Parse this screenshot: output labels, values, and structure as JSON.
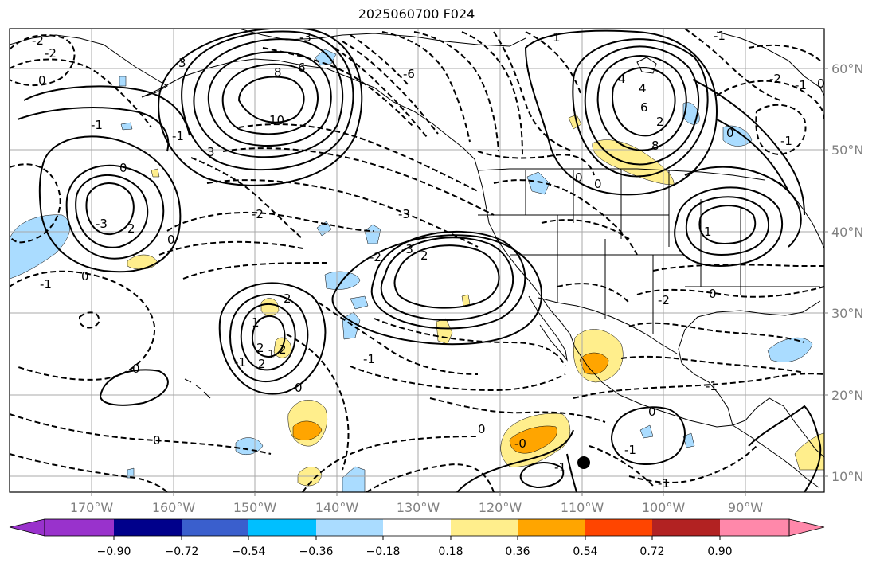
{
  "title": "2025060700 F024",
  "map": {
    "lon_labels": [
      "170°W",
      "160°W",
      "150°W",
      "140°W",
      "130°W",
      "120°W",
      "110°W",
      "100°W",
      "90°W"
    ],
    "lat_labels": [
      "60°N",
      "50°N",
      "40°N",
      "30°N",
      "20°N",
      "10°N"
    ],
    "contour_labels": [
      "-2",
      "-2",
      "0",
      "-1",
      "3",
      "-3",
      "-6",
      "8",
      "6",
      "10",
      "4",
      "4",
      "6",
      "8",
      "2",
      "-1",
      "0",
      "3",
      "-3",
      "0",
      "2",
      "-2",
      "-3",
      "-1",
      "0",
      "-2",
      "-3",
      "2",
      "0",
      "-1",
      "1",
      "2",
      "1",
      "2",
      "2",
      "2",
      "-1",
      "0",
      "0",
      "0",
      "-0",
      "0",
      "-2",
      "0",
      "-1",
      "-1",
      "-1",
      "-1",
      "0",
      "0",
      "-1",
      "-1",
      "-2",
      "-1",
      "0",
      "0",
      "1",
      "1"
    ],
    "marker": "black-dot",
    "shading_colors": {
      "neg_light": "#aadcff",
      "pos_light": "#ffee8c",
      "pos_mid": "#ffa500"
    }
  },
  "colorbar": {
    "ticks": [
      "−0.90",
      "−0.72",
      "−0.54",
      "−0.36",
      "−0.18",
      "0.18",
      "0.36",
      "0.54",
      "0.72",
      "0.90"
    ],
    "colors": [
      "#9932cc",
      "#00008b",
      "#3a5fcd",
      "#00bfff",
      "#aadcff",
      "#ffffff",
      "#ffee8c",
      "#ffa500",
      "#ff4500",
      "#b22222",
      "#ff88aa"
    ]
  }
}
